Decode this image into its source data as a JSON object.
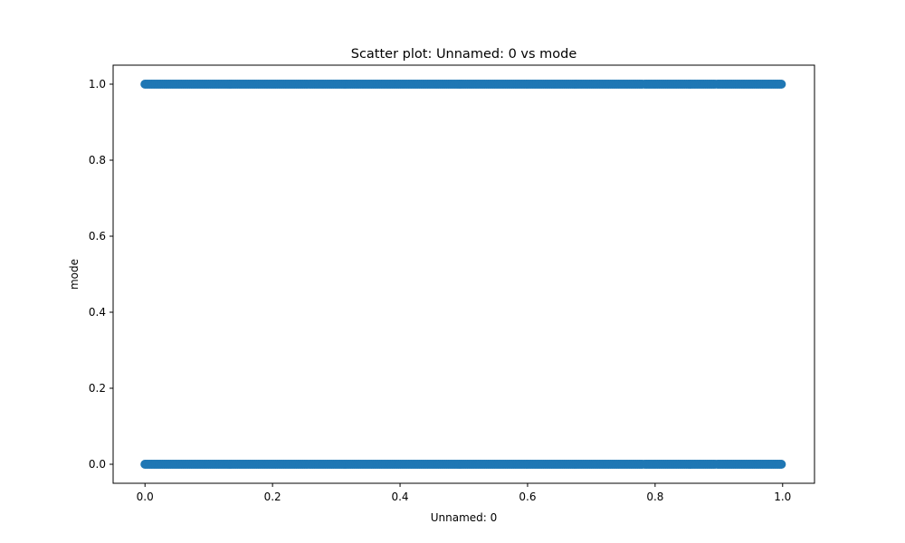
{
  "chart_data": {
    "type": "scatter",
    "title": "Scatter plot: Unnamed: 0 vs mode",
    "xlabel": "Unnamed: 0",
    "ylabel": "mode",
    "xlim": [
      -0.05,
      1.05
    ],
    "ylim": [
      -0.05,
      1.05
    ],
    "xticks": [
      0.0,
      0.2,
      0.4,
      0.6,
      0.8,
      1.0
    ],
    "xtick_labels": [
      "0.0",
      "0.2",
      "0.4",
      "0.6",
      "0.8",
      "1.0"
    ],
    "yticks": [
      0.0,
      0.2,
      0.4,
      0.6,
      0.8,
      1.0
    ],
    "ytick_labels": [
      "0.0",
      "0.2",
      "0.4",
      "0.6",
      "0.8",
      "1.0"
    ],
    "grid": false,
    "legend": "none",
    "marker_color": "#1f77b4",
    "series": [
      {
        "y": 1,
        "x_segments": [
          [
            0.0,
            0.256
          ],
          [
            0.258,
            0.598
          ],
          [
            0.6,
            0.782
          ],
          [
            0.784,
            0.896
          ],
          [
            0.898,
            1.0
          ]
        ]
      },
      {
        "y": 0,
        "x_segments": [
          [
            0.0,
            0.256
          ],
          [
            0.258,
            0.598
          ],
          [
            0.6,
            0.782
          ],
          [
            0.784,
            0.896
          ],
          [
            0.898,
            1.0
          ]
        ]
      }
    ]
  }
}
